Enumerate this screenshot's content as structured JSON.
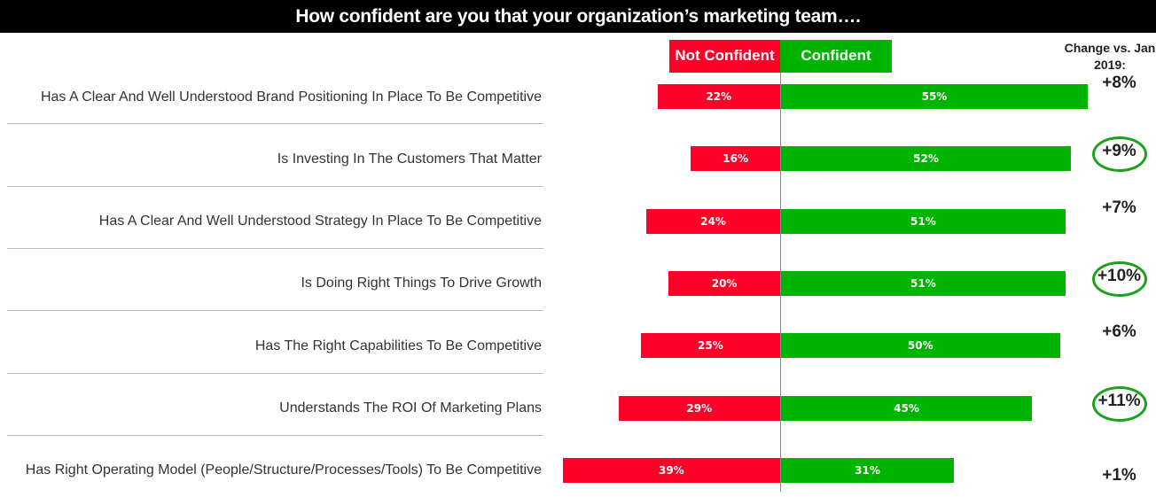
{
  "chart_data": {
    "type": "bar",
    "title": "How confident are you that your organization’s marketing team….",
    "legend": [
      "Not Confident",
      "Confident"
    ],
    "change_header": "Change vs. Jan 2019:",
    "colors": {
      "not_confident": "#ff0029",
      "confident": "#00b400",
      "highlight": "#1aa31a"
    },
    "categories": [
      "Has A Clear And Well Understood Brand Positioning In Place To Be Competitive",
      "Is Investing In The Customers That Matter",
      "Has A Clear And Well Understood Strategy In Place To Be Competitive",
      "Is Doing Right Things To Drive Growth",
      "Has The Right Capabilities To Be Competitive",
      "Understands The ROI Of Marketing Plans",
      "Has Right Operating Model (People/Structure/Processes/Tools) To Be Competitive"
    ],
    "series": [
      {
        "name": "Not Confident",
        "values": [
          22,
          16,
          24,
          20,
          25,
          29,
          39
        ],
        "labels": [
          "22%",
          "16%",
          "24%",
          "20%",
          "25%",
          "29%",
          "39%"
        ]
      },
      {
        "name": "Confident",
        "values": [
          55,
          52,
          51,
          51,
          50,
          45,
          31
        ],
        "labels": [
          "55%",
          "52%",
          "51%",
          "51%",
          "50%",
          "45%",
          "31%"
        ]
      }
    ],
    "change": [
      "+8%",
      "+9%",
      "+7%",
      "+10%",
      "+6%",
      "+11%",
      "+1%"
    ],
    "highlighted": [
      false,
      true,
      false,
      true,
      false,
      true,
      false
    ]
  }
}
